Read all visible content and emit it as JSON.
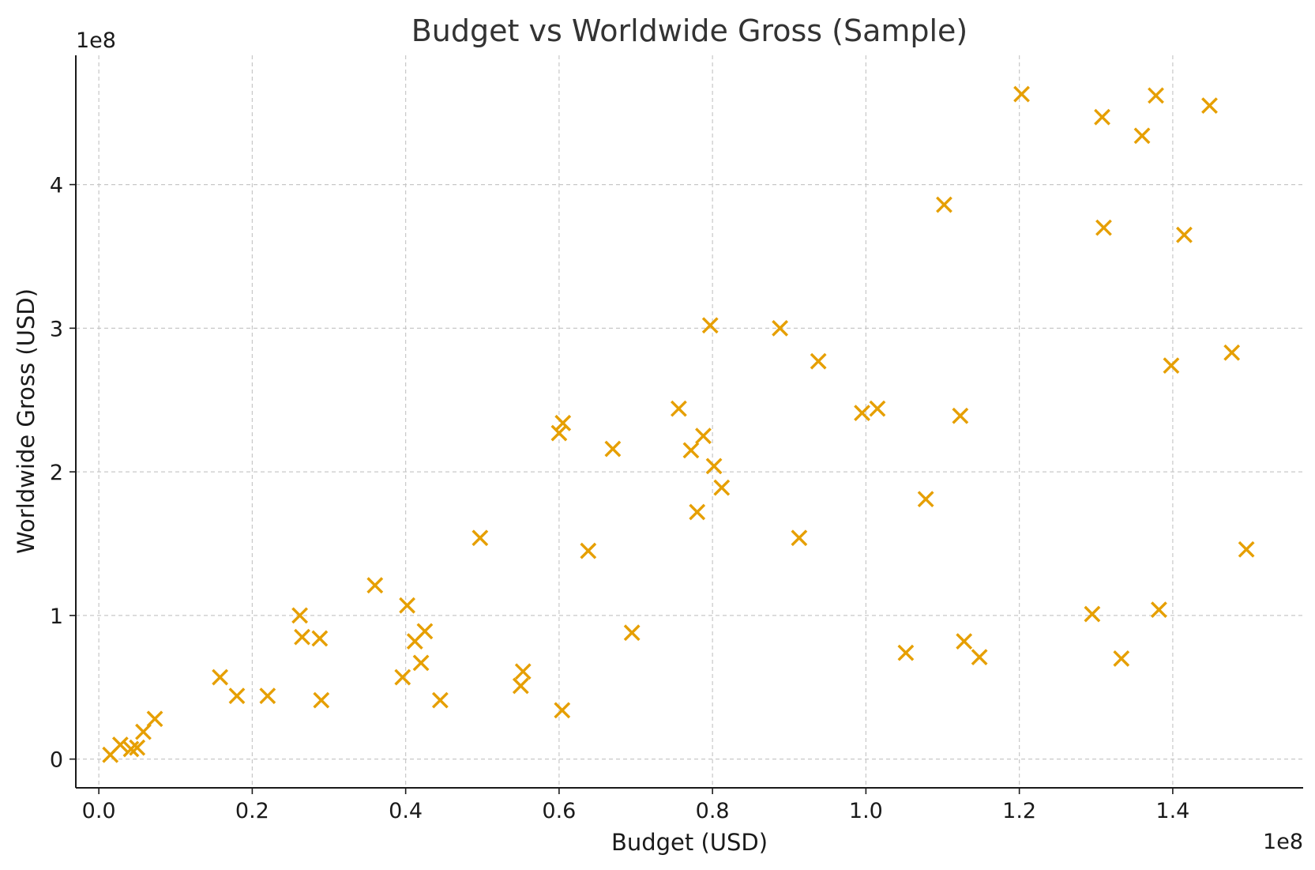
{
  "chart_data": {
    "type": "scatter",
    "title": "Budget vs Worldwide Gross (Sample)",
    "xlabel": "Budget (USD)",
    "ylabel": "Worldwide Gross (USD)",
    "x_offset_label": "1e8",
    "y_offset_label": "1e8",
    "x_scale": 100000000,
    "y_scale": 100000000,
    "xlim": [
      -0.03,
      1.57
    ],
    "ylim": [
      -0.2,
      4.9
    ],
    "x_ticks": [
      0.0,
      0.2,
      0.4,
      0.6,
      0.8,
      1.0,
      1.2,
      1.4
    ],
    "x_tick_labels": [
      "0.0",
      "0.2",
      "0.4",
      "0.6",
      "0.8",
      "1.0",
      "1.2",
      "1.4"
    ],
    "y_ticks": [
      0,
      1,
      2,
      3,
      4
    ],
    "y_tick_labels": [
      "0",
      "1",
      "2",
      "3",
      "4"
    ],
    "grid": true,
    "marker": "x",
    "color": "#e69f00",
    "points": [
      {
        "x": 0.015,
        "y": 0.03
      },
      {
        "x": 0.028,
        "y": 0.1
      },
      {
        "x": 0.042,
        "y": 0.07
      },
      {
        "x": 0.05,
        "y": 0.08
      },
      {
        "x": 0.058,
        "y": 0.19
      },
      {
        "x": 0.073,
        "y": 0.28
      },
      {
        "x": 0.158,
        "y": 0.57
      },
      {
        "x": 0.18,
        "y": 0.44
      },
      {
        "x": 0.22,
        "y": 0.44
      },
      {
        "x": 0.262,
        "y": 1.0
      },
      {
        "x": 0.265,
        "y": 0.85
      },
      {
        "x": 0.288,
        "y": 0.84
      },
      {
        "x": 0.29,
        "y": 0.41
      },
      {
        "x": 0.36,
        "y": 1.21
      },
      {
        "x": 0.396,
        "y": 0.57
      },
      {
        "x": 0.402,
        "y": 1.07
      },
      {
        "x": 0.412,
        "y": 0.82
      },
      {
        "x": 0.42,
        "y": 0.67
      },
      {
        "x": 0.425,
        "y": 0.89
      },
      {
        "x": 0.445,
        "y": 0.41
      },
      {
        "x": 0.497,
        "y": 1.54
      },
      {
        "x": 0.55,
        "y": 0.51
      },
      {
        "x": 0.553,
        "y": 0.61
      },
      {
        "x": 0.6,
        "y": 2.27
      },
      {
        "x": 0.605,
        "y": 2.34
      },
      {
        "x": 0.604,
        "y": 0.34
      },
      {
        "x": 0.638,
        "y": 1.45
      },
      {
        "x": 0.67,
        "y": 2.16
      },
      {
        "x": 0.695,
        "y": 0.88
      },
      {
        "x": 0.756,
        "y": 2.44
      },
      {
        "x": 0.772,
        "y": 2.15
      },
      {
        "x": 0.78,
        "y": 1.72
      },
      {
        "x": 0.788,
        "y": 2.25
      },
      {
        "x": 0.797,
        "y": 3.02
      },
      {
        "x": 0.802,
        "y": 2.04
      },
      {
        "x": 0.812,
        "y": 1.89
      },
      {
        "x": 0.888,
        "y": 3.0
      },
      {
        "x": 0.913,
        "y": 1.54
      },
      {
        "x": 0.938,
        "y": 2.77
      },
      {
        "x": 0.995,
        "y": 2.41
      },
      {
        "x": 1.015,
        "y": 2.44
      },
      {
        "x": 1.052,
        "y": 0.74
      },
      {
        "x": 1.078,
        "y": 1.81
      },
      {
        "x": 1.102,
        "y": 3.86
      },
      {
        "x": 1.123,
        "y": 2.39
      },
      {
        "x": 1.128,
        "y": 0.82
      },
      {
        "x": 1.148,
        "y": 0.71
      },
      {
        "x": 1.203,
        "y": 4.63
      },
      {
        "x": 1.295,
        "y": 1.01
      },
      {
        "x": 1.308,
        "y": 4.47
      },
      {
        "x": 1.31,
        "y": 3.7
      },
      {
        "x": 1.333,
        "y": 0.7
      },
      {
        "x": 1.36,
        "y": 4.34
      },
      {
        "x": 1.378,
        "y": 4.62
      },
      {
        "x": 1.382,
        "y": 1.04
      },
      {
        "x": 1.398,
        "y": 2.74
      },
      {
        "x": 1.415,
        "y": 3.65
      },
      {
        "x": 1.448,
        "y": 4.55
      },
      {
        "x": 1.477,
        "y": 2.83
      },
      {
        "x": 1.496,
        "y": 1.46
      }
    ]
  }
}
